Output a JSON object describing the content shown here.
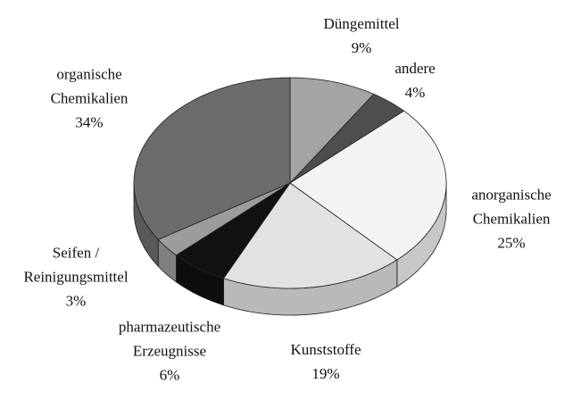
{
  "chart_data": {
    "type": "pie3d",
    "categories": [
      "Düngemittel",
      "andere",
      "anorganische Chemikalien",
      "Kunststoffe",
      "pharmazeutische Erzeugnisse",
      "Seifen / Reinigungsmittel",
      "organische Chemikalien"
    ],
    "values": [
      9,
      4,
      25,
      19,
      6,
      3,
      34
    ],
    "value_labels": [
      "9%",
      "4%",
      "25%",
      "19%",
      "6%",
      "3%",
      "34%"
    ],
    "colors": [
      "#a4a4a4",
      "#4e4e4e",
      "#f3f3f3",
      "#e2e2e2",
      "#111111",
      "#9c9c9c",
      "#6c6c6c"
    ]
  }
}
